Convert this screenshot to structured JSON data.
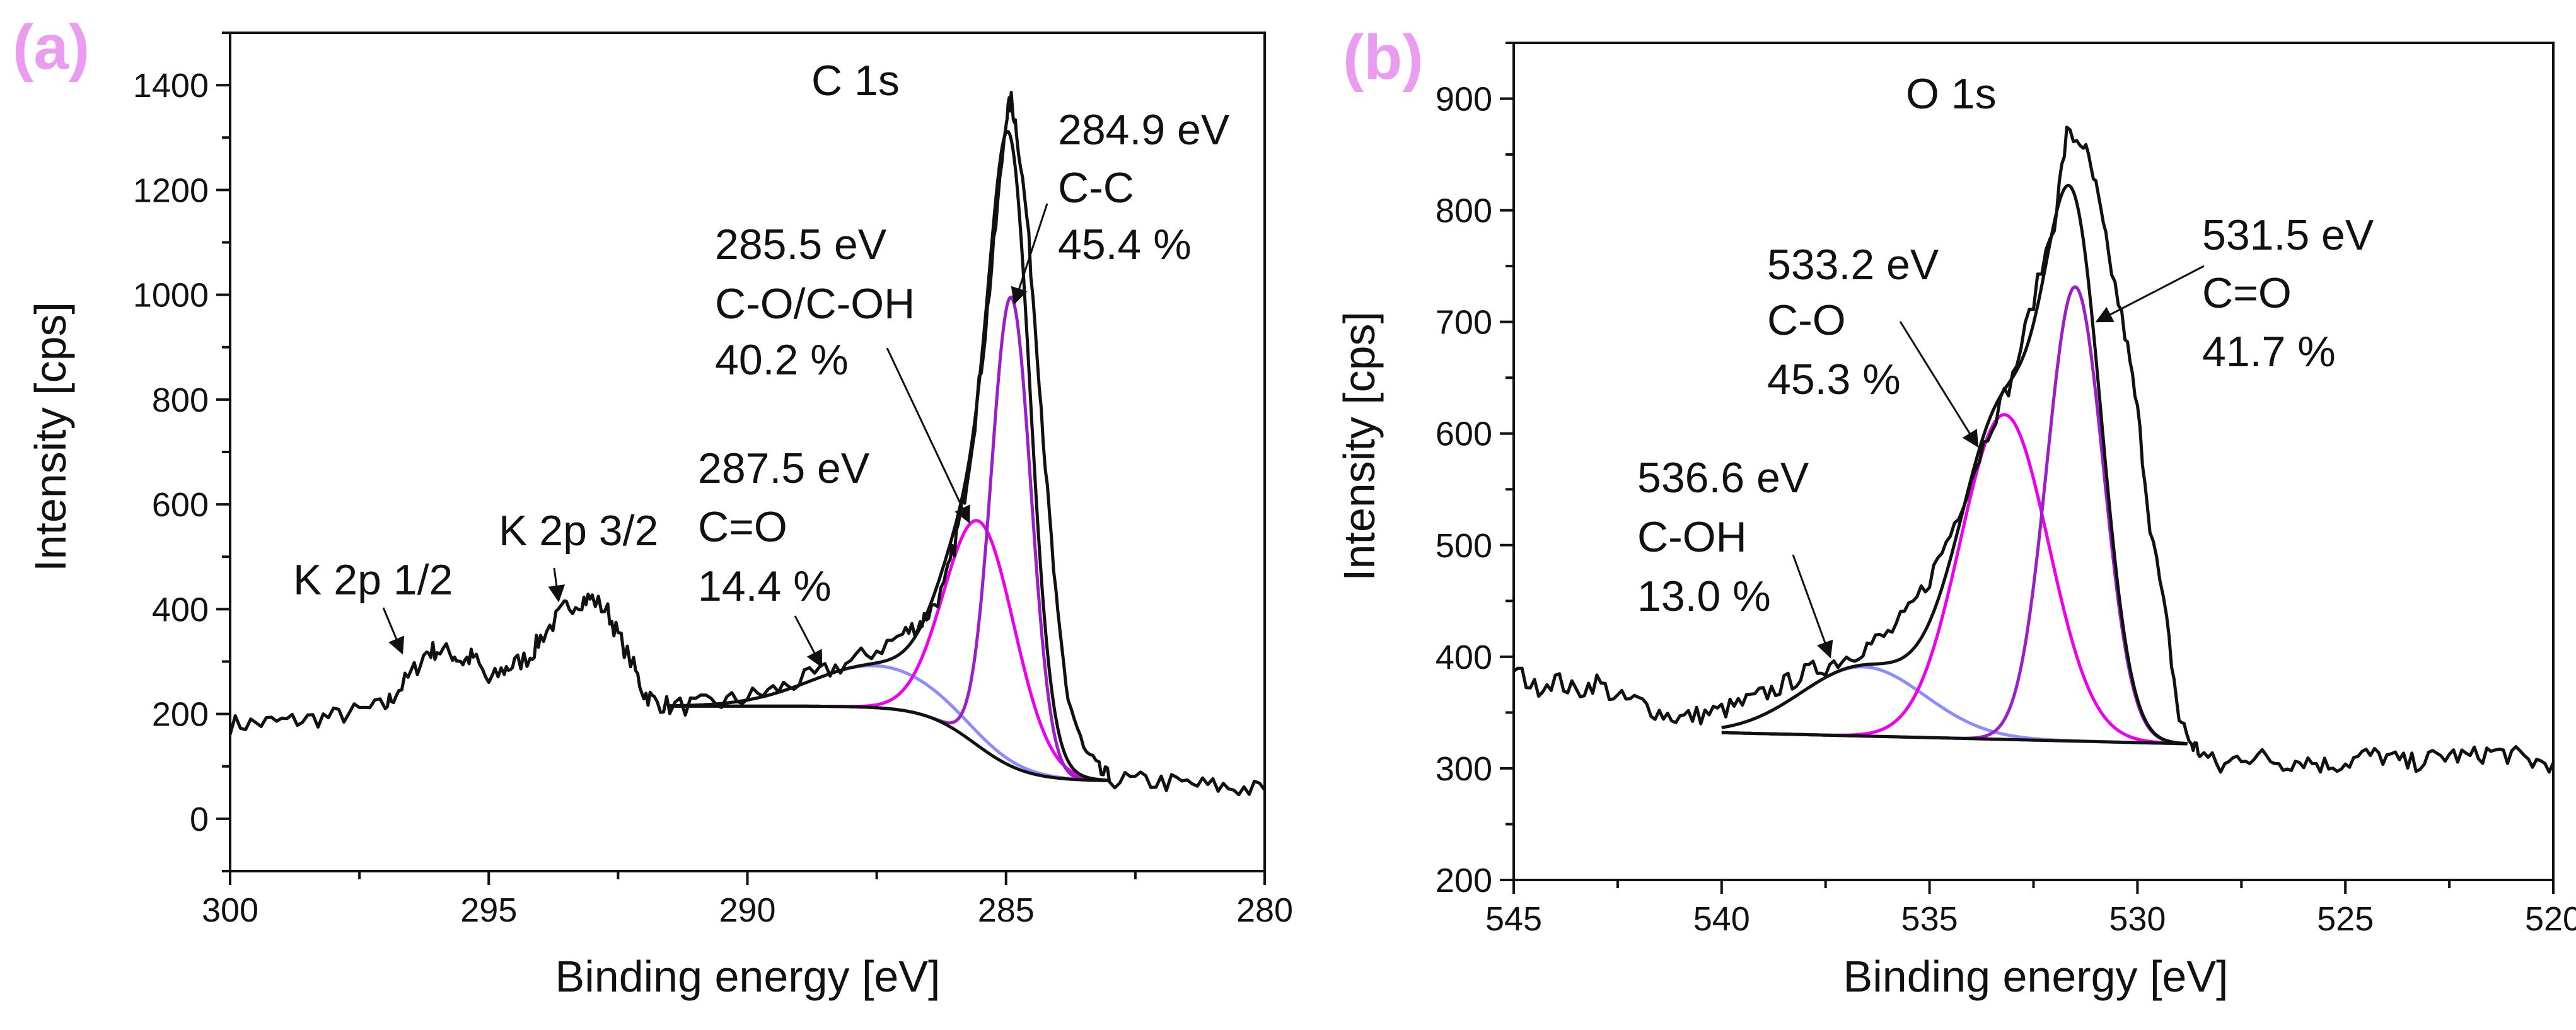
{
  "chart_data": [
    {
      "type": "line",
      "panel_label": "(a)",
      "title": "C 1s",
      "xlabel": "Binding energy [eV]",
      "ylabel": "Intensity [cps]",
      "xlim": [
        300,
        280
      ],
      "ylim": [
        -100,
        1500
      ],
      "xticks": [
        300,
        295,
        290,
        285,
        280
      ],
      "yticks": [
        0,
        200,
        400,
        600,
        800,
        1000,
        1200,
        1400
      ],
      "xminor": 2.5,
      "yminor": 100,
      "grid": false,
      "raw": {
        "x": [
          300,
          299.5,
          299,
          298.5,
          298,
          297.5,
          297,
          296.8,
          296.5,
          296.2,
          296,
          295.7,
          295.5,
          295.3,
          295,
          294.7,
          294.5,
          294.2,
          294,
          293.7,
          293.5,
          293.2,
          293,
          292.7,
          292.5,
          292.2,
          292,
          291.8,
          291.5,
          291,
          290.5,
          290,
          289.5,
          289,
          288.5,
          288,
          287.5,
          287,
          286.7,
          286.5,
          286.2,
          286,
          285.8,
          285.6,
          285.4,
          285.2,
          285,
          284.9,
          284.8,
          284.6,
          284.4,
          284.2,
          284,
          283.8,
          283.5,
          283.2,
          283,
          282.5,
          282,
          281.5,
          281,
          280.5,
          280
        ],
        "y": [
          180,
          182,
          185,
          190,
          195,
          205,
          215,
          240,
          275,
          318,
          322,
          315,
          300,
          310,
          260,
          285,
          295,
          310,
          345,
          380,
          405,
          418,
          420,
          395,
          350,
          290,
          240,
          225,
          215,
          216,
          222,
          232,
          245,
          262,
          280,
          300,
          322,
          352,
          370,
          392,
          440,
          520,
          620,
          760,
          930,
          1130,
          1340,
          1370,
          1320,
          1150,
          900,
          620,
          380,
          230,
          130,
          90,
          76,
          72,
          70,
          66,
          62,
          58,
          55
        ]
      },
      "background": {
        "from": 291.5,
        "to": 283,
        "high": 215,
        "low": 72,
        "step_center": 285.6,
        "step_width": 0.5
      },
      "components": [
        {
          "center": 284.9,
          "amplitude": 895,
          "fwhm": 0.9,
          "color": "#9b1fc8",
          "label": [
            "284.9 eV",
            "C-C",
            "45.4 %"
          ]
        },
        {
          "center": 285.5,
          "amplitude": 430,
          "fwhm": 1.6,
          "color": "#ee00ee",
          "label": [
            "285.5 eV",
            "C-O/C-OH",
            "40.2 %"
          ]
        },
        {
          "center": 287.5,
          "amplitude": 80,
          "fwhm": 3.0,
          "color": "#8c8cff",
          "label": [
            "287.5 eV",
            "C=O",
            "14.4 %"
          ]
        }
      ],
      "annotations": [
        "K 2p 1/2",
        "K 2p 3/2"
      ]
    },
    {
      "type": "line",
      "panel_label": "(b)",
      "title": "O 1s",
      "xlabel": "Binding energy [eV]",
      "ylabel": "Intensity [cps]",
      "xlim": [
        545,
        520
      ],
      "ylim": [
        200,
        950
      ],
      "xticks": [
        545,
        540,
        535,
        530,
        525,
        520
      ],
      "yticks": [
        200,
        300,
        400,
        500,
        600,
        700,
        800,
        900
      ],
      "xminor": 2.5,
      "yminor": 50,
      "grid": false,
      "raw": {
        "x": [
          545,
          544.5,
          544,
          543.5,
          543,
          542.5,
          542,
          541.5,
          541,
          540.5,
          540,
          539.5,
          539,
          538.5,
          538,
          537.5,
          537,
          536.5,
          536,
          535.5,
          535,
          534.5,
          534,
          533.5,
          533,
          532.5,
          532,
          531.7,
          531.3,
          531,
          530.7,
          530.3,
          530,
          529.7,
          529.3,
          529,
          528.7,
          528.5,
          528,
          527.5,
          527,
          526.5,
          526,
          525.5,
          525,
          524.5,
          524,
          523.5,
          523,
          522.5,
          522,
          521.5,
          521,
          520.5,
          520
        ],
        "y": [
          390,
          372,
          380,
          368,
          378,
          362,
          360,
          350,
          345,
          348,
          352,
          358,
          366,
          375,
          385,
          392,
          400,
          410,
          420,
          440,
          470,
          510,
          560,
          610,
          650,
          720,
          790,
          868,
          860,
          820,
          760,
          690,
          620,
          520,
          430,
          345,
          322,
          315,
          300,
          312,
          310,
          305,
          308,
          303,
          305,
          312,
          310,
          304,
          308,
          312,
          310,
          315,
          312,
          306,
          305
        ]
      },
      "background": {
        "from": 540,
        "to": 528.8,
        "high": 332,
        "low": 322
      },
      "components": [
        {
          "center": 531.5,
          "amplitude": 407,
          "fwhm": 1.6,
          "color": "#9b1fc8",
          "label": [
            "531.5 eV",
            "C=O",
            "41.7 %"
          ]
        },
        {
          "center": 533.2,
          "amplitude": 291,
          "fwhm": 2.5,
          "color": "#ee00ee",
          "label": [
            "533.2 eV",
            "C-O",
            "45.3 %"
          ]
        },
        {
          "center": 536.6,
          "amplitude": 62,
          "fwhm": 3.5,
          "color": "#8c8cff",
          "label": [
            "536.6 eV",
            "C-OH",
            "13.0 %"
          ]
        }
      ]
    }
  ]
}
